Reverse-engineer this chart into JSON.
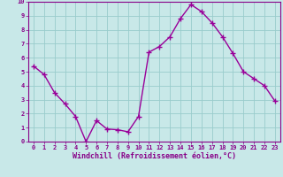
{
  "x": [
    0,
    1,
    2,
    3,
    4,
    5,
    6,
    7,
    8,
    9,
    10,
    11,
    12,
    13,
    14,
    15,
    16,
    17,
    18,
    19,
    20,
    21,
    22,
    23
  ],
  "y": [
    5.4,
    4.8,
    3.5,
    2.7,
    1.8,
    0.0,
    1.5,
    0.9,
    0.85,
    0.7,
    1.8,
    6.4,
    6.8,
    7.5,
    8.8,
    9.8,
    9.3,
    8.5,
    7.5,
    6.3,
    5.0,
    4.5,
    4.0,
    2.9
  ],
  "line_color": "#990099",
  "marker": "+",
  "marker_size": 4,
  "line_width": 1.0,
  "xlabel": "Windchill (Refroidissement éolien,°C)",
  "ylim": [
    0,
    10
  ],
  "xlim": [
    -0.5,
    23.5
  ],
  "yticks": [
    0,
    1,
    2,
    3,
    4,
    5,
    6,
    7,
    8,
    9,
    10
  ],
  "xticks": [
    0,
    1,
    2,
    3,
    4,
    5,
    6,
    7,
    8,
    9,
    10,
    11,
    12,
    13,
    14,
    15,
    16,
    17,
    18,
    19,
    20,
    21,
    22,
    23
  ],
  "background_color": "#c8e8e8",
  "grid_color": "#99cccc",
  "tick_label_color": "#880088",
  "xlabel_color": "#880088",
  "tick_fontsize": 5.0,
  "xlabel_fontsize": 6.0,
  "spine_color": "#880088"
}
